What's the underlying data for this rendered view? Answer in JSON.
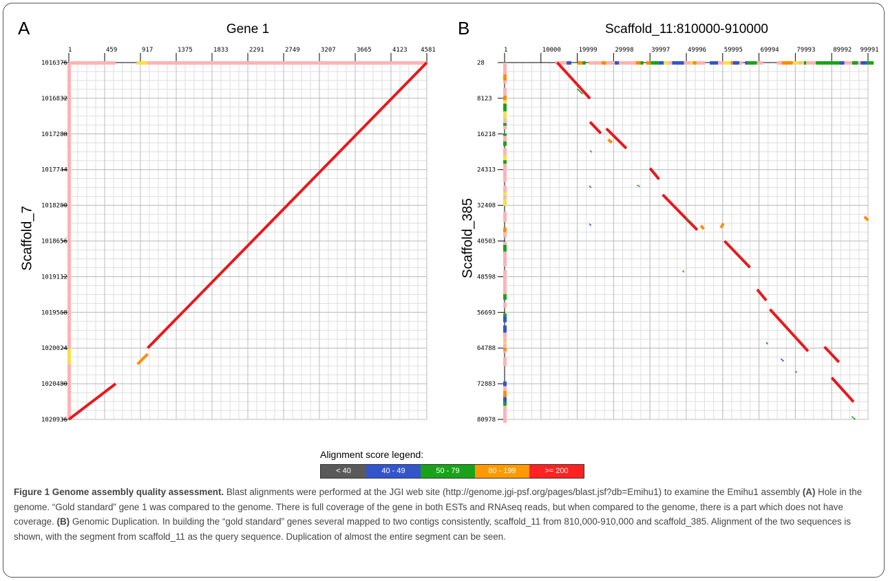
{
  "chart_data": [
    {
      "type": "scatter",
      "panel": "A",
      "title": "Gene 1",
      "xlabel": "",
      "ylabel": "Scaffold_7",
      "x_ticks": [
        "1",
        "459",
        "917",
        "1375",
        "1833",
        "2291",
        "2749",
        "3207",
        "3665",
        "4123",
        "4581"
      ],
      "y_ticks": [
        "1016376",
        "1016832",
        "1017288",
        "1017744",
        "1018200",
        "1018656",
        "1019112",
        "1019568",
        "1020024",
        "1020480",
        "1020936"
      ],
      "xlim": [
        1,
        4581
      ],
      "ylim": [
        1016376,
        1020936
      ],
      "grid": true,
      "segments": [
        {
          "x1": 1,
          "y1": 1020936,
          "x2": 600,
          "y2": 1020480,
          "score_bin": ">= 200"
        },
        {
          "x1": 880,
          "y1": 1020230,
          "x2": 1010,
          "y2": 1020100,
          "score_bin": "80 - 199"
        },
        {
          "x1": 1010,
          "y1": 1020024,
          "x2": 4581,
          "y2": 1016376,
          "score_bin": ">= 200"
        }
      ],
      "query_coverage": [
        {
          "start": 1,
          "end": 600,
          "bin": ">= 200"
        },
        {
          "start": 870,
          "end": 1010,
          "bin": "80 - 199"
        },
        {
          "start": 1010,
          "end": 4581,
          "bin": ">= 200"
        }
      ],
      "subject_coverage": [
        {
          "start": 1016376,
          "end": 1020024,
          "bin": ">= 200"
        },
        {
          "start": 1020024,
          "end": 1020230,
          "bin": "80 - 199"
        },
        {
          "start": 1020230,
          "end": 1020936,
          "bin": ">= 200"
        }
      ]
    },
    {
      "type": "scatter",
      "panel": "B",
      "title": "Scaffold_11:810000-910000",
      "xlabel": "",
      "ylabel": "Scaffold_385",
      "x_ticks": [
        "1",
        "10000",
        "19999",
        "29998",
        "39997",
        "49996",
        "59995",
        "69994",
        "79993",
        "89992",
        "99991"
      ],
      "y_ticks": [
        "28",
        "8123",
        "16218",
        "24313",
        "32408",
        "40503",
        "48598",
        "56693",
        "64788",
        "72883",
        "80978"
      ],
      "xlim": [
        1,
        99991
      ],
      "ylim": [
        28,
        80978
      ],
      "grid": true,
      "segments": [
        {
          "x1": 14500,
          "y1": 28,
          "x2": 23500,
          "y2": 8200,
          "score_bin": ">= 200"
        },
        {
          "x1": 23500,
          "y1": 13500,
          "x2": 26500,
          "y2": 16100,
          "score_bin": ">= 200"
        },
        {
          "x1": 28000,
          "y1": 15000,
          "x2": 33500,
          "y2": 19500,
          "score_bin": ">= 200"
        },
        {
          "x1": 40000,
          "y1": 24000,
          "x2": 42500,
          "y2": 26500,
          "score_bin": ">= 200"
        },
        {
          "x1": 43500,
          "y1": 30000,
          "x2": 53000,
          "y2": 38000,
          "score_bin": ">= 200"
        },
        {
          "x1": 60500,
          "y1": 40500,
          "x2": 67500,
          "y2": 46500,
          "score_bin": ">= 200"
        },
        {
          "x1": 69500,
          "y1": 51500,
          "x2": 72000,
          "y2": 54000,
          "score_bin": ">= 200"
        },
        {
          "x1": 73000,
          "y1": 56000,
          "x2": 83500,
          "y2": 65500,
          "score_bin": ">= 200"
        },
        {
          "x1": 88000,
          "y1": 64500,
          "x2": 92000,
          "y2": 68000,
          "score_bin": ">= 200"
        },
        {
          "x1": 90000,
          "y1": 71500,
          "x2": 96000,
          "y2": 77000,
          "score_bin": ">= 200"
        },
        {
          "x1": 20000,
          "y1": 6000,
          "x2": 21500,
          "y2": 7200,
          "score_bin": "50 - 79"
        },
        {
          "x1": 28500,
          "y1": 17500,
          "x2": 29500,
          "y2": 18200,
          "score_bin": "80 - 199"
        },
        {
          "x1": 54000,
          "y1": 37000,
          "x2": 54800,
          "y2": 37800,
          "score_bin": "80 - 199"
        },
        {
          "x1": 60200,
          "y1": 36500,
          "x2": 59500,
          "y2": 37500,
          "score_bin": "80 - 199"
        },
        {
          "x1": 50000,
          "y1": 35300,
          "x2": 50800,
          "y2": 36000,
          "score_bin": "50 - 79"
        },
        {
          "x1": 99000,
          "y1": 35000,
          "x2": 100000,
          "y2": 35800,
          "score_bin": "80 - 199"
        },
        {
          "x1": 23500,
          "y1": 20000,
          "x2": 24000,
          "y2": 20400,
          "score_bin": "50 - 79"
        },
        {
          "x1": 23300,
          "y1": 28000,
          "x2": 23800,
          "y2": 28400,
          "score_bin": "40 - 49"
        },
        {
          "x1": 23300,
          "y1": 36600,
          "x2": 23800,
          "y2": 37000,
          "score_bin": "40 - 49"
        },
        {
          "x1": 36500,
          "y1": 27800,
          "x2": 37200,
          "y2": 28200,
          "score_bin": "50 - 79"
        },
        {
          "x1": 49000,
          "y1": 47200,
          "x2": 49400,
          "y2": 47600,
          "score_bin": "50 - 79"
        },
        {
          "x1": 72000,
          "y1": 63500,
          "x2": 72400,
          "y2": 63900,
          "score_bin": "40 - 49"
        },
        {
          "x1": 76000,
          "y1": 67200,
          "x2": 76800,
          "y2": 67800,
          "score_bin": "40 - 49"
        },
        {
          "x1": 80000,
          "y1": 70000,
          "x2": 80400,
          "y2": 70400,
          "score_bin": "50 - 79"
        },
        {
          "x1": 95500,
          "y1": 80300,
          "x2": 96500,
          "y2": 81000,
          "score_bin": "50 - 79"
        }
      ]
    }
  ],
  "panel_a": {
    "letter": "A",
    "title": "Gene 1",
    "ylabel": "Scaffold_7"
  },
  "panel_b": {
    "letter": "B",
    "title": "Scaffold_11:810000-910000",
    "ylabel": "Scaffold_385"
  },
  "legend": {
    "title": "Alignment score legend:",
    "bins": [
      {
        "label": "< 40",
        "color": "#5a5a5a"
      },
      {
        "label": "40 - 49",
        "color": "#3355cc"
      },
      {
        "label": "50 - 79",
        "color": "#1aa31a"
      },
      {
        "label": "80 - 199",
        "color": "#ff9900"
      },
      {
        "label": ">= 200",
        "color": "#ff2222"
      }
    ]
  },
  "colors": {
    "red": "#e8181c",
    "orange": "#ff8c00",
    "green": "#1aa31a",
    "blue": "#3355cc",
    "pink": "#ffb3b3",
    "yellow": "#f5e04a",
    "grid": "#dddddd"
  },
  "caption": {
    "title": "Figure 1 Genome assembly quality assessment.",
    "p1": " Blast alignments were performed at the JGI web site (http://genome.jgi-psf.org/pages/blast.jsf?db=Emihu1) to examine the Emihu1 assembly ",
    "a_tag": "(A)",
    "p2": " Hole in the genome. “Gold standard” gene 1 was compared to the genome. There is full coverage of the gene in both ESTs and RNAseq reads, but when compared to the genome, there is a part which does not have coverage. ",
    "b_tag": "(B)",
    "p3": " Genomic Duplication. In building the “gold standard” genes several mapped to two contigs consistently, scaffold_11 from 810,000-910,000 and scaffold_385. Alignment of the two sequences is shown, with the segment from scaffold_11 as the query sequence. Duplication of almost the entire segment can be seen."
  }
}
